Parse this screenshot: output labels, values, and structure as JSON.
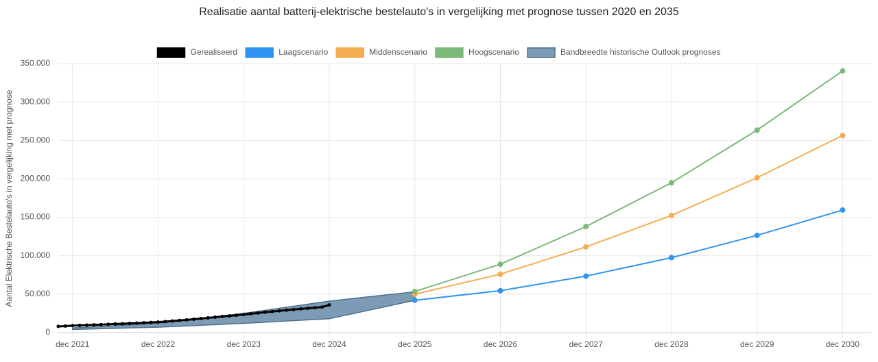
{
  "chart_data": {
    "type": "line",
    "title": "Realisatie aantal batterij-elektrische bestelauto's in vergelijking met prognose tussen 2020 en 2035",
    "y_label": "Aantal Elektrische Bestelauto's in vergelijking met prognose",
    "xlim": [
      "2021-10",
      "2031-04"
    ],
    "xticks": [
      {
        "value": "2021-12",
        "label": "dec 2021"
      },
      {
        "value": "2022-12",
        "label": "dec 2022"
      },
      {
        "value": "2023-12",
        "label": "dec 2023"
      },
      {
        "value": "2024-12",
        "label": "dec 2024"
      },
      {
        "value": "2025-12",
        "label": "dec 2025"
      },
      {
        "value": "2026-12",
        "label": "dec 2026"
      },
      {
        "value": "2027-12",
        "label": "dec 2027"
      },
      {
        "value": "2028-12",
        "label": "dec 2028"
      },
      {
        "value": "2029-12",
        "label": "dec 2029"
      },
      {
        "value": "2030-12",
        "label": "dec 2030"
      }
    ],
    "ylim": [
      0,
      350000
    ],
    "yticks": [
      0,
      {
        "value": 50000,
        "label": "50.000"
      },
      {
        "value": 100000,
        "label": "100.000"
      },
      {
        "value": 150000,
        "label": "150.000"
      },
      {
        "value": 200000,
        "label": "200.000"
      },
      {
        "value": 250000,
        "label": "250.000"
      },
      {
        "value": 300000,
        "label": "300.000"
      },
      {
        "value": 350000,
        "label": "350.000"
      }
    ],
    "grid": true,
    "series": [
      {
        "name": "Gerealiseerd",
        "color": "#000000",
        "x": [
          "2021-10",
          "2021-11",
          "2021-12",
          "2022-01",
          "2022-02",
          "2022-03",
          "2022-04",
          "2022-05",
          "2022-06",
          "2022-07",
          "2022-08",
          "2022-09",
          "2022-10",
          "2022-11",
          "2022-12",
          "2023-01",
          "2023-02",
          "2023-03",
          "2023-04",
          "2023-05",
          "2023-06",
          "2023-07",
          "2023-08",
          "2023-09",
          "2023-10",
          "2023-11",
          "2023-12",
          "2024-01",
          "2024-02",
          "2024-03",
          "2024-04",
          "2024-05",
          "2024-06",
          "2024-07",
          "2024-08",
          "2024-09",
          "2024-10",
          "2024-11",
          "2024-12"
        ],
        "values": [
          8000,
          8500,
          9000,
          9300,
          9700,
          10000,
          10400,
          10800,
          11200,
          11500,
          11900,
          12300,
          12800,
          13200,
          13700,
          14300,
          15000,
          15800,
          16600,
          17400,
          18300,
          19100,
          20000,
          20900,
          21700,
          22600,
          23500,
          24500,
          25500,
          26500,
          27400,
          28300,
          29200,
          30000,
          30800,
          31600,
          32400,
          33200,
          36000
        ]
      },
      {
        "name": "Laagscenario",
        "color": "#2f95f0",
        "x": [
          "2025-12",
          "2026-12",
          "2027-12",
          "2028-12",
          "2029-12",
          "2030-12"
        ],
        "values": [
          42000,
          54500,
          73500,
          97500,
          126500,
          159500
        ]
      },
      {
        "name": "Middenscenario",
        "color": "#f5ad52",
        "x": [
          "2025-12",
          "2026-12",
          "2027-12",
          "2028-12",
          "2029-12",
          "2030-12"
        ],
        "values": [
          50000,
          76000,
          111500,
          152500,
          201500,
          256500
        ]
      },
      {
        "name": "Hoogscenario",
        "color": "#7cb87a",
        "x": [
          "2025-12",
          "2026-12",
          "2027-12",
          "2028-12",
          "2029-12",
          "2030-12"
        ],
        "values": [
          53500,
          89000,
          138000,
          195000,
          263500,
          340500
        ]
      }
    ],
    "band": {
      "name": "Bandbreedte historische Outlook prognoses",
      "color": "#7d9bb5",
      "border": "#4d6f8c",
      "x": [
        "2021-12",
        "2022-12",
        "2023-12",
        "2024-12",
        "2025-12"
      ],
      "upper": [
        6000,
        12000,
        25000,
        41000,
        53000
      ],
      "lower": [
        4000,
        7000,
        12000,
        18000,
        42000
      ]
    }
  }
}
